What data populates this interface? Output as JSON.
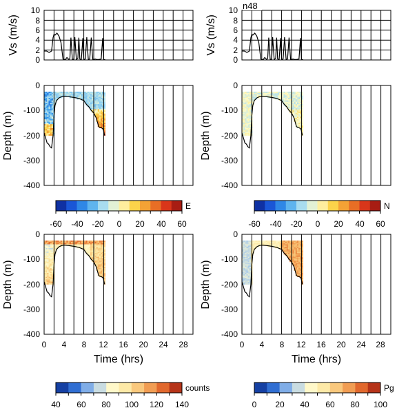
{
  "chart_data": [
    {
      "id": "vs_left",
      "type": "line",
      "ylabel": "Vs (m/s)",
      "ylim": [
        0,
        10
      ],
      "xlim": [
        0,
        30
      ],
      "yticks": [
        "0",
        "2",
        "4",
        "6",
        "8",
        "10"
      ],
      "xticks": [
        0,
        4,
        8,
        12,
        16,
        20,
        24,
        28
      ],
      "series": [
        {
          "x": [
            0,
            0.5,
            1,
            1.5,
            1.8,
            2,
            2.2,
            2.6,
            3,
            3.4,
            3.8,
            4,
            4.3,
            4.6,
            5,
            5.2,
            5.4,
            5.7,
            6,
            6.2,
            6.5,
            6.8,
            7,
            7.2,
            7.5,
            7.8,
            8,
            8.3,
            8.6,
            8.9,
            9.2,
            9.5,
            9.8,
            10,
            10.3,
            10.6,
            11,
            11.5,
            11.8,
            12,
            12.3
          ],
          "y": [
            1.8,
            1.8,
            1.5,
            1.8,
            4.5,
            5.2,
            5.0,
            5.4,
            4.8,
            3.5,
            0.2,
            0.1,
            0.1,
            0.5,
            0.1,
            0.3,
            4.5,
            0.1,
            0.2,
            4.6,
            0.1,
            0.3,
            4.5,
            0.2,
            0.1,
            4.4,
            0.1,
            0.2,
            4.6,
            0.1,
            0.2,
            4.5,
            0.1,
            0.1,
            0.2,
            0.1,
            0.1,
            0.2,
            4.4,
            0.1,
            0.1
          ]
        }
      ]
    },
    {
      "id": "vs_right",
      "type": "line",
      "ylabel": "Vs (m/s)",
      "ylim": [
        0,
        10
      ],
      "xlim": [
        0,
        30
      ],
      "yticks": [
        "0",
        "2",
        "4",
        "6",
        "8",
        "10"
      ],
      "xticks": [
        0,
        4,
        8,
        12,
        16,
        20,
        24,
        28
      ],
      "annotation": "n48",
      "series": [
        {
          "x": [
            0,
            0.5,
            1,
            1.5,
            1.8,
            2,
            2.2,
            2.6,
            3,
            3.4,
            3.8,
            4,
            4.3,
            4.6,
            5,
            5.2,
            5.4,
            5.7,
            6,
            6.2,
            6.5,
            6.8,
            7,
            7.2,
            7.5,
            7.8,
            8,
            8.3,
            8.6,
            8.9,
            9.2,
            9.5,
            9.8,
            10,
            10.3,
            10.6,
            11,
            11.5,
            11.8,
            12,
            12.3
          ],
          "y": [
            1.8,
            1.8,
            1.5,
            1.8,
            4.5,
            5.2,
            5.0,
            5.4,
            4.8,
            3.5,
            0.2,
            0.1,
            0.1,
            0.5,
            0.1,
            0.3,
            4.5,
            0.1,
            0.2,
            4.6,
            0.1,
            0.3,
            4.5,
            0.2,
            0.1,
            4.4,
            0.1,
            0.2,
            4.6,
            0.1,
            0.2,
            4.5,
            0.1,
            0.1,
            0.2,
            0.1,
            0.1,
            0.2,
            4.4,
            0.1,
            0.1
          ]
        }
      ]
    },
    {
      "id": "E",
      "type": "heatmap",
      "ylabel": "Depth (m)",
      "ylim": [
        -400,
        0
      ],
      "xlim": [
        0,
        30
      ],
      "yticks": [
        "0",
        "-100",
        "-200",
        "-300",
        "-400"
      ],
      "xticks": [
        0,
        4,
        8,
        12,
        16,
        20,
        24,
        28
      ],
      "data_x": [
        0,
        12.2
      ],
      "data_depth": [
        -25,
        -200
      ],
      "colorbar": {
        "label": "E",
        "range": [
          -60,
          60
        ],
        "ticks": [
          "-60",
          "-40",
          "-20",
          "0",
          "20",
          "40",
          "60"
        ]
      }
    },
    {
      "id": "N",
      "type": "heatmap",
      "ylabel": "Depth (m)",
      "ylim": [
        -400,
        0
      ],
      "xlim": [
        0,
        30
      ],
      "yticks": [
        "0",
        "-100",
        "-200",
        "-300",
        "-400"
      ],
      "xticks": [
        0,
        4,
        8,
        12,
        16,
        20,
        24,
        28
      ],
      "data_x": [
        0,
        12.2
      ],
      "data_depth": [
        -25,
        -200
      ],
      "colorbar": {
        "label": "N",
        "range": [
          -60,
          60
        ],
        "ticks": [
          "-60",
          "-40",
          "-20",
          "0",
          "20",
          "40",
          "60"
        ]
      }
    },
    {
      "id": "counts",
      "type": "heatmap",
      "ylabel": "Depth (m)",
      "xlabel": "Time (hrs)",
      "ylim": [
        -400,
        0
      ],
      "xlim": [
        0,
        30
      ],
      "yticks": [
        "0",
        "-100",
        "-200",
        "-300",
        "-400"
      ],
      "xticks": [
        "0",
        "4",
        "8",
        "12",
        "16",
        "20",
        "24",
        "28"
      ],
      "data_x": [
        0,
        12.2
      ],
      "data_depth": [
        -25,
        -200
      ],
      "colorbar": {
        "label": "counts",
        "range": [
          40,
          140
        ],
        "ticks": [
          "40",
          "60",
          "80",
          "100",
          "120",
          "140"
        ]
      }
    },
    {
      "id": "Pg",
      "type": "heatmap",
      "ylabel": "Depth (m)",
      "xlabel": "Time (hrs)",
      "ylim": [
        -400,
        0
      ],
      "xlim": [
        0,
        30
      ],
      "yticks": [
        "0",
        "-100",
        "-200",
        "-300",
        "-400"
      ],
      "xticks": [
        "0",
        "4",
        "8",
        "12",
        "16",
        "20",
        "24",
        "28"
      ],
      "data_x": [
        0,
        12.2
      ],
      "data_depth": [
        -25,
        -200
      ],
      "colorbar": {
        "label": "Pg",
        "range": [
          0,
          100
        ],
        "ticks": [
          "0",
          "20",
          "40",
          "60",
          "80",
          "100"
        ]
      }
    }
  ],
  "bathymetry": {
    "x": [
      0,
      0.3,
      0.6,
      0.9,
      1.2,
      1.5,
      1.8,
      2.0,
      2.2,
      2.5,
      3,
      3.5,
      4,
      5,
      6,
      7,
      8,
      8.5,
      9,
      9.5,
      10,
      10.5,
      11,
      11.3,
      11.6,
      11.9,
      12.2
    ],
    "depth": [
      -190,
      -210,
      -230,
      -235,
      -245,
      -250,
      -200,
      -120,
      -80,
      -60,
      -50,
      -45,
      -43,
      -45,
      -48,
      -52,
      -60,
      -75,
      -85,
      -100,
      -110,
      -130,
      -165,
      -168,
      -170,
      -175,
      -200
    ]
  },
  "colors": {
    "jet": [
      "#0a1f8a",
      "#1a56d6",
      "#3aa0ee",
      "#a8dcef",
      "#fffbc8",
      "#fbd34a",
      "#f08a2a",
      "#d9361a",
      "#8f1010"
    ],
    "counts": [
      "#0a2a8a",
      "#2a6ad0",
      "#9cc3ee",
      "#fffbd0",
      "#fde6a0",
      "#f6b060",
      "#e0642a",
      "#a01a10"
    ]
  }
}
